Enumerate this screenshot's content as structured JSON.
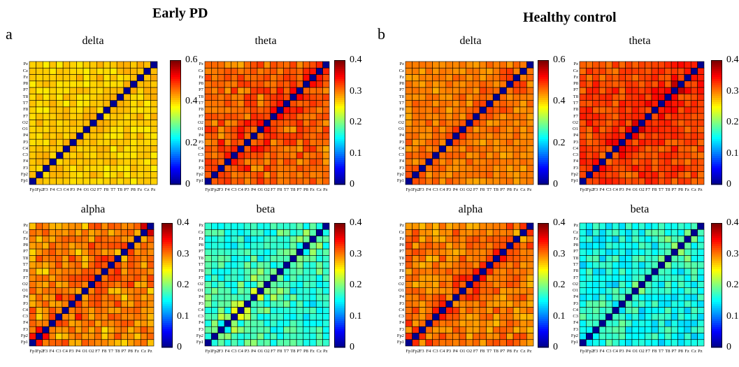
{
  "groups": [
    {
      "title": "Early PD",
      "letter": "a"
    },
    {
      "title": "Healthy control",
      "letter": "b"
    }
  ],
  "channels": [
    "Fp1",
    "Fp2",
    "F3",
    "F4",
    "C3",
    "C4",
    "P3",
    "P4",
    "O1",
    "O2",
    "F7",
    "F8",
    "T7",
    "T8",
    "P7",
    "P8",
    "Fz",
    "Cz",
    "Pz"
  ],
  "colors": {
    "colormap": [
      "#00008f",
      "#0000ff",
      "#0080ff",
      "#00ffff",
      "#80ff80",
      "#ffff00",
      "#ff8000",
      "#ff0000",
      "#800000"
    ],
    "diagonal": "#00008f",
    "grid": "#000000"
  },
  "chart_data": [
    {
      "type": "heatmap",
      "group": "Early PD",
      "title": "delta",
      "colorbar": {
        "range": [
          0,
          0.6
        ],
        "ticks": [
          "0",
          "0.2",
          "0.4",
          "0.6"
        ]
      },
      "base": 0.42,
      "offdiag_range": [
        0.38,
        0.46
      ]
    },
    {
      "type": "heatmap",
      "group": "Early PD",
      "title": "theta",
      "colorbar": {
        "range": [
          0,
          0.4
        ],
        "ticks": [
          "0",
          "0.1",
          "0.2",
          "0.3",
          "0.4"
        ]
      },
      "base": 0.33,
      "offdiag_range": [
        0.28,
        0.38
      ]
    },
    {
      "type": "heatmap",
      "group": "Early PD",
      "title": "alpha",
      "colorbar": {
        "range": [
          0,
          0.4
        ],
        "ticks": [
          "0",
          "0.1",
          "0.2",
          "0.3",
          "0.4"
        ]
      },
      "base": 0.32,
      "offdiag_range": [
        0.26,
        0.38
      ]
    },
    {
      "type": "heatmap",
      "group": "Early PD",
      "title": "beta",
      "colorbar": {
        "range": [
          0,
          0.4
        ],
        "ticks": [
          "0",
          "0.1",
          "0.2",
          "0.3",
          "0.4"
        ]
      },
      "base": 0.17,
      "offdiag_range": [
        0.13,
        0.26
      ]
    },
    {
      "type": "heatmap",
      "group": "Healthy control",
      "title": "delta",
      "colorbar": {
        "range": [
          0,
          0.6
        ],
        "ticks": [
          "0",
          "0.2",
          "0.4",
          "0.6"
        ]
      },
      "base": 0.46,
      "offdiag_range": [
        0.42,
        0.52
      ]
    },
    {
      "type": "heatmap",
      "group": "Healthy control",
      "title": "theta",
      "colorbar": {
        "range": [
          0,
          0.4
        ],
        "ticks": [
          "0",
          "0.1",
          "0.2",
          "0.3",
          "0.4"
        ]
      },
      "base": 0.34,
      "offdiag_range": [
        0.3,
        0.38
      ]
    },
    {
      "type": "heatmap",
      "group": "Healthy control",
      "title": "alpha",
      "colorbar": {
        "range": [
          0,
          0.4
        ],
        "ticks": [
          "0",
          "0.1",
          "0.2",
          "0.3",
          "0.4"
        ]
      },
      "base": 0.32,
      "offdiag_range": [
        0.27,
        0.37
      ]
    },
    {
      "type": "heatmap",
      "group": "Healthy control",
      "title": "beta",
      "colorbar": {
        "range": [
          0,
          0.4
        ],
        "ticks": [
          "0",
          "0.1",
          "0.2",
          "0.3",
          "0.4"
        ]
      },
      "base": 0.16,
      "offdiag_range": [
        0.12,
        0.24
      ]
    }
  ]
}
